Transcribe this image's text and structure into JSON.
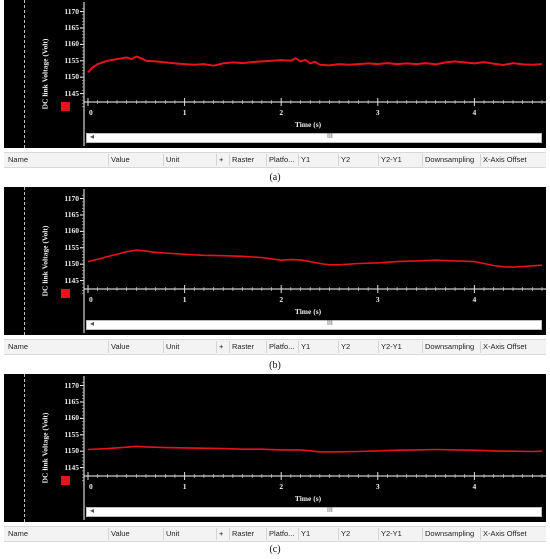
{
  "chart_data": [
    {
      "type": "line",
      "caption": "(a)",
      "ylabel": "DC link Voltage (Volt)",
      "xlabel": "Time (s)",
      "yticks": [
        1145,
        1150,
        1155,
        1160,
        1165,
        1170
      ],
      "xticks": [
        0,
        1,
        2,
        3,
        4
      ],
      "ylim": [
        1140,
        1172
      ],
      "xlim": [
        0,
        4.7
      ],
      "series_color": "#e8121b",
      "x": [
        0,
        0.05,
        0.1,
        0.2,
        0.3,
        0.4,
        0.45,
        0.5,
        0.55,
        0.6,
        0.7,
        0.8,
        0.9,
        1.0,
        1.1,
        1.2,
        1.3,
        1.4,
        1.5,
        1.6,
        1.7,
        1.8,
        1.9,
        2.0,
        2.1,
        2.15,
        2.2,
        2.25,
        2.3,
        2.35,
        2.4,
        2.5,
        2.6,
        2.7,
        2.8,
        2.9,
        3.0,
        3.1,
        3.2,
        3.3,
        3.4,
        3.5,
        3.6,
        3.7,
        3.8,
        3.9,
        4.0,
        4.1,
        4.2,
        4.3,
        4.4,
        4.5,
        4.6,
        4.7
      ],
      "y": [
        1151.5,
        1153,
        1154,
        1155,
        1155.5,
        1156,
        1155.5,
        1156.3,
        1155.8,
        1155,
        1154.8,
        1154.5,
        1154.2,
        1154,
        1153.8,
        1154,
        1153.5,
        1154.2,
        1154.5,
        1154.3,
        1154.6,
        1154.8,
        1155,
        1155.2,
        1155,
        1155.8,
        1154.8,
        1155.3,
        1154.2,
        1154.7,
        1153.8,
        1153.6,
        1154,
        1153.8,
        1154,
        1154.2,
        1154,
        1154.3,
        1154,
        1154.2,
        1154,
        1154.3,
        1153.9,
        1154.5,
        1154.8,
        1154.5,
        1154.2,
        1154.6,
        1154.1,
        1153.7,
        1154.3,
        1153.9,
        1153.8,
        1154
      ]
    },
    {
      "type": "line",
      "caption": "(b)",
      "ylabel": "DC link Voltage (Volt)",
      "xlabel": "Time (s)",
      "yticks": [
        1145,
        1150,
        1155,
        1160,
        1165,
        1170
      ],
      "xticks": [
        0,
        1,
        2,
        3,
        4
      ],
      "ylim": [
        1140,
        1172
      ],
      "xlim": [
        0,
        4.7
      ],
      "series_color": "#e8121b",
      "x": [
        0,
        0.1,
        0.2,
        0.3,
        0.4,
        0.5,
        0.6,
        0.7,
        0.8,
        0.9,
        1.0,
        1.2,
        1.4,
        1.6,
        1.8,
        2.0,
        2.1,
        2.2,
        2.3,
        2.4,
        2.5,
        2.6,
        2.8,
        3.0,
        3.2,
        3.4,
        3.6,
        3.8,
        4.0,
        4.1,
        4.2,
        4.3,
        4.4,
        4.5,
        4.6,
        4.7
      ],
      "y": [
        1150.8,
        1151.5,
        1152.3,
        1153,
        1153.8,
        1154.3,
        1154,
        1153.6,
        1153.4,
        1153.2,
        1153,
        1152.7,
        1152.6,
        1152.4,
        1152,
        1151.2,
        1151.4,
        1151.3,
        1150.8,
        1150.2,
        1149.8,
        1149.8,
        1150.2,
        1150.4,
        1150.8,
        1151,
        1151.2,
        1151,
        1150.8,
        1150.2,
        1149.6,
        1149.2,
        1149.1,
        1149.3,
        1149.5,
        1149.7
      ]
    },
    {
      "type": "line",
      "caption": "(c)",
      "ylabel": "DC link Voltage (Volt)",
      "xlabel": "Time (s)",
      "yticks": [
        1145,
        1150,
        1155,
        1160,
        1165,
        1170
      ],
      "xticks": [
        0,
        1,
        2,
        3,
        4
      ],
      "ylim": [
        1140,
        1172
      ],
      "xlim": [
        0,
        4.7
      ],
      "series_color": "#e8121b",
      "x": [
        0,
        0.2,
        0.4,
        0.5,
        0.6,
        0.8,
        1.0,
        1.2,
        1.4,
        1.6,
        1.8,
        2.0,
        2.2,
        2.4,
        2.6,
        2.8,
        3.0,
        3.2,
        3.4,
        3.6,
        3.8,
        4.0,
        4.2,
        4.4,
        4.6,
        4.7
      ],
      "y": [
        1150.5,
        1150.8,
        1151.2,
        1151.5,
        1151.3,
        1151.1,
        1151,
        1150.9,
        1150.8,
        1150.6,
        1150.6,
        1150.4,
        1150.4,
        1149.8,
        1149.8,
        1149.9,
        1150.1,
        1150.3,
        1150.4,
        1150.5,
        1150.4,
        1150.3,
        1150.1,
        1150,
        1149.9,
        1150
      ]
    }
  ],
  "table_header": [
    "Name",
    "Value",
    "Unit",
    "+",
    "Raster",
    "Platfo...",
    "Y1",
    "Y2",
    "Y2-Y1",
    "Downsampling",
    "X-Axis Offset"
  ],
  "scroll_grip": "III",
  "scroll_left_arrow": "◂",
  "colors": {
    "background": "#000000",
    "trace": "#e8121b",
    "axis": "#ffffff",
    "marker": "#e8121b"
  }
}
